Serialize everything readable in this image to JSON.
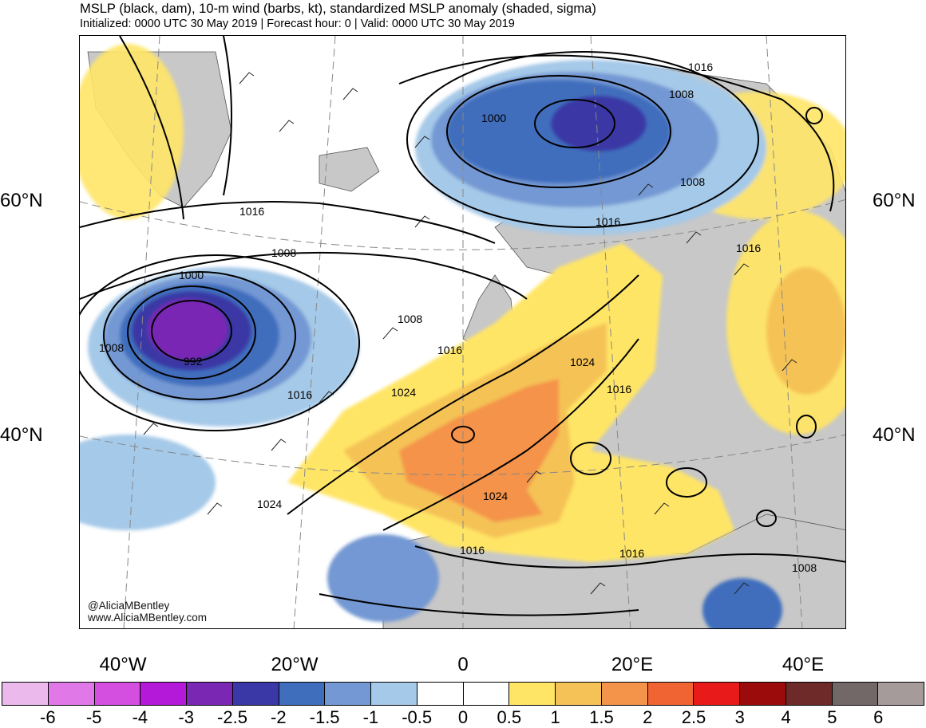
{
  "header": {
    "title": "MSLP (black, dam), 10-m wind (barbs, kt), standardized MSLP anomaly (shaded, sigma)",
    "subtitle": "Initialized: 0000 UTC 30 May 2019 | Forecast hour: 0 | Valid: 0000 UTC 30 May 2019"
  },
  "map": {
    "lat_labels": [
      "60°N",
      "40°N"
    ],
    "lon_labels": [
      "40°W",
      "20°W",
      "0",
      "20°E",
      "40°E"
    ],
    "contour_labels": [
      "1016",
      "1008",
      "1000",
      "1008",
      "1016",
      "1016",
      "1008",
      "1000",
      "992",
      "1008",
      "1008",
      "1016",
      "1016",
      "1024",
      "1024",
      "1016",
      "1016",
      "1024",
      "1024",
      "1016",
      "1016",
      "1008"
    ],
    "credit": [
      "@AliciaMBentley",
      "www.AliciaMBentley.com"
    ],
    "land_color": "#c8c8c8",
    "contour_color": "#000000"
  },
  "colorbar": {
    "colors": [
      "#ebb9eb",
      "#e178e8",
      "#d44ee0",
      "#b418d8",
      "#7a28b4",
      "#3a38a6",
      "#3f6ebd",
      "#7398d3",
      "#a5c9e8",
      "#ffffff",
      "#ffffff",
      "#ffe566",
      "#f5c257",
      "#f4934a",
      "#f06433",
      "#e81a1a",
      "#9b0b0b",
      "#6e2a28",
      "#736868",
      "#a69b9b"
    ],
    "ticks": [
      "-6",
      "-5",
      "-4",
      "-3",
      "-2.5",
      "-2",
      "-1.5",
      "-1",
      "-0.5",
      "0",
      "0.5",
      "1",
      "1.5",
      "2",
      "2.5",
      "3",
      "4",
      "5",
      "6"
    ]
  }
}
